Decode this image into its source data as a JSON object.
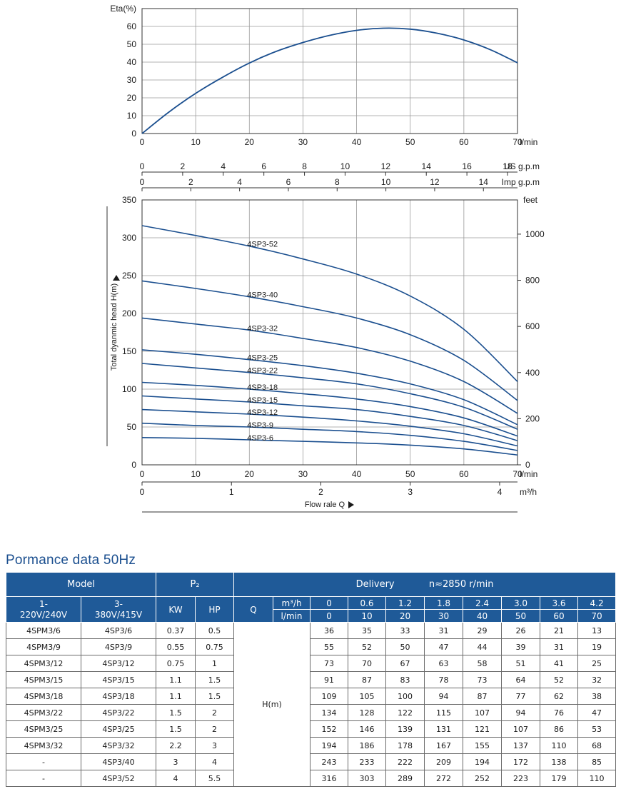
{
  "colors": {
    "curve": "#1b4f8f",
    "header_bg": "#1f5a98",
    "title": "#1b4f8f",
    "grid": "#9a9a9a"
  },
  "chart_data": [
    {
      "type": "line",
      "title": "",
      "ylabel": "Eta(%)",
      "xlabel": "l/min",
      "xlim": [
        0,
        70
      ],
      "ylim": [
        0,
        70
      ],
      "xticks": [
        0,
        10,
        20,
        30,
        40,
        50,
        60,
        70
      ],
      "yticks": [
        0,
        10,
        20,
        30,
        40,
        50,
        60
      ],
      "grid": true,
      "series": [
        {
          "x": [
            0,
            5,
            10,
            15,
            20,
            25,
            30,
            35,
            40,
            45,
            50,
            55,
            60,
            65,
            70
          ],
          "y": [
            0,
            12,
            22.5,
            31.5,
            39.5,
            46,
            51,
            55,
            57.8,
            59,
            58.5,
            56.2,
            52.4,
            46.9,
            39.6
          ]
        }
      ]
    },
    {
      "type": "line",
      "title": "",
      "ylabel": "Total dyanmic head H(m)",
      "xlabel": "l/min",
      "secondary_ylabel": "feet",
      "xlim": [
        0,
        70
      ],
      "ylim": [
        0,
        350
      ],
      "xticks": [
        0,
        10,
        20,
        30,
        40,
        50,
        60,
        70
      ],
      "yticks": [
        0,
        50,
        100,
        150,
        200,
        250,
        300,
        350
      ],
      "secondary_yticks": [
        0,
        200,
        400,
        600,
        800,
        1000
      ],
      "top_axes": [
        {
          "label": "US g.p.m",
          "ticks": [
            0,
            2,
            4,
            6,
            8,
            10,
            12,
            14,
            16,
            18
          ]
        },
        {
          "label": "Imp g.p.m",
          "ticks": [
            0,
            2,
            4,
            6,
            8,
            10,
            12,
            14
          ]
        }
      ],
      "bottom_axis_2": {
        "label": "m³/h",
        "ticks": [
          0,
          1,
          2,
          3,
          4
        ]
      },
      "flow_label": "Flow rale Q",
      "grid": true,
      "x": [
        0,
        10,
        20,
        30,
        40,
        50,
        60,
        70
      ],
      "series": [
        {
          "name": "4SP3-52",
          "values": [
            316,
            303,
            289,
            272,
            252,
            223,
            179,
            110
          ]
        },
        {
          "name": "4SP3-40",
          "values": [
            243,
            233,
            222,
            209,
            194,
            172,
            138,
            85
          ]
        },
        {
          "name": "4SP3-32",
          "values": [
            194,
            186,
            178,
            167,
            155,
            137,
            110,
            68
          ]
        },
        {
          "name": "4SP3-25",
          "values": [
            152,
            146,
            139,
            131,
            121,
            107,
            86,
            53
          ]
        },
        {
          "name": "4SP3-22",
          "values": [
            134,
            128,
            122,
            115,
            107,
            94,
            76,
            47
          ]
        },
        {
          "name": "4SP3-18",
          "values": [
            109,
            105,
            100,
            94,
            87,
            77,
            62,
            38
          ]
        },
        {
          "name": "4SP3-15",
          "values": [
            91,
            87,
            83,
            78,
            73,
            64,
            52,
            32
          ]
        },
        {
          "name": "4SP3-12",
          "values": [
            73,
            70,
            67,
            63,
            58,
            51,
            41,
            25
          ]
        },
        {
          "name": "4SP3-9",
          "values": [
            55,
            52,
            50,
            47,
            44,
            39,
            31,
            19
          ]
        },
        {
          "name": "4SP3-6",
          "values": [
            36,
            35,
            33,
            31,
            29,
            26,
            21,
            13
          ]
        }
      ]
    }
  ],
  "table": {
    "title": "Pormance data 50Hz",
    "model_label": "Model",
    "p2_label": "P₂",
    "delivery_label": "Delivery",
    "speed_label": "n≈2850 r/min",
    "col_1ph": "1-\n220V/240V",
    "col_3ph": "3-\n380V/415V",
    "kw_label": "KW",
    "hp_label": "HP",
    "q_label": "Q",
    "m3h_label": "m³/h",
    "lmin_label": "l/min",
    "m3h_values": [
      "0",
      "0.6",
      "1.2",
      "1.8",
      "2.4",
      "3.0",
      "3.6",
      "4.2"
    ],
    "lmin_values": [
      "0",
      "10",
      "20",
      "30",
      "40",
      "50",
      "60",
      "70"
    ],
    "h_label": "H(m)",
    "rows": [
      {
        "m1": "4SPM3/6",
        "m3": "4SP3/6",
        "kw": "0.37",
        "hp": "0.5",
        "h": [
          "36",
          "35",
          "33",
          "31",
          "29",
          "26",
          "21",
          "13"
        ]
      },
      {
        "m1": "4SPM3/9",
        "m3": "4SP3/9",
        "kw": "0.55",
        "hp": "0.75",
        "h": [
          "55",
          "52",
          "50",
          "47",
          "44",
          "39",
          "31",
          "19"
        ]
      },
      {
        "m1": "4SPM3/12",
        "m3": "4SP3/12",
        "kw": "0.75",
        "hp": "1",
        "h": [
          "73",
          "70",
          "67",
          "63",
          "58",
          "51",
          "41",
          "25"
        ]
      },
      {
        "m1": "4SPM3/15",
        "m3": "4SP3/15",
        "kw": "1.1",
        "hp": "1.5",
        "h": [
          "91",
          "87",
          "83",
          "78",
          "73",
          "64",
          "52",
          "32"
        ]
      },
      {
        "m1": "4SPM3/18",
        "m3": "4SP3/18",
        "kw": "1.1",
        "hp": "1.5",
        "h": [
          "109",
          "105",
          "100",
          "94",
          "87",
          "77",
          "62",
          "38"
        ]
      },
      {
        "m1": "4SPM3/22",
        "m3": "4SP3/22",
        "kw": "1.5",
        "hp": "2",
        "h": [
          "134",
          "128",
          "122",
          "115",
          "107",
          "94",
          "76",
          "47"
        ]
      },
      {
        "m1": "4SPM3/25",
        "m3": "4SP3/25",
        "kw": "1.5",
        "hp": "2",
        "h": [
          "152",
          "146",
          "139",
          "131",
          "121",
          "107",
          "86",
          "53"
        ]
      },
      {
        "m1": "4SPM3/32",
        "m3": "4SP3/32",
        "kw": "2.2",
        "hp": "3",
        "h": [
          "194",
          "186",
          "178",
          "167",
          "155",
          "137",
          "110",
          "68"
        ]
      },
      {
        "m1": "-",
        "m3": "4SP3/40",
        "kw": "3",
        "hp": "4",
        "h": [
          "243",
          "233",
          "222",
          "209",
          "194",
          "172",
          "138",
          "85"
        ]
      },
      {
        "m1": "-",
        "m3": "4SP3/52",
        "kw": "4",
        "hp": "5.5",
        "h": [
          "316",
          "303",
          "289",
          "272",
          "252",
          "223",
          "179",
          "110"
        ]
      }
    ]
  }
}
